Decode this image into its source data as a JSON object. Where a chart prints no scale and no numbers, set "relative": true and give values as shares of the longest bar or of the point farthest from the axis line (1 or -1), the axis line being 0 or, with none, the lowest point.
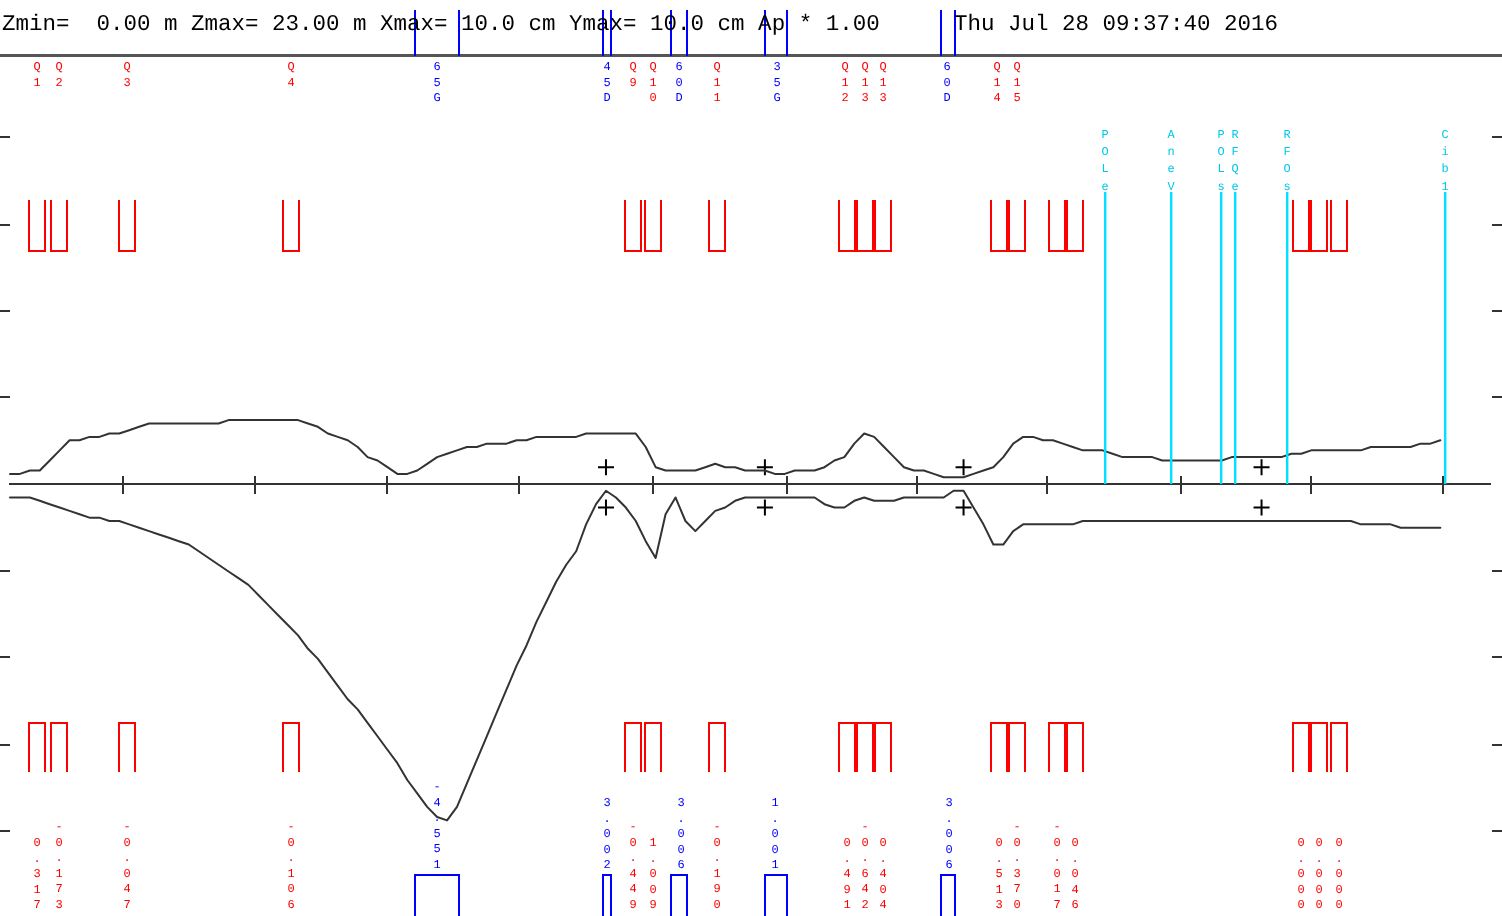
{
  "chart_data": {
    "type": "line",
    "title": "Zmin=  0.00 m Zmax= 23.00 m Xmax= 10.0 cm Ymax= 10.0 cm Ap * 1.00",
    "subtitle": "Thu Jul 28 09:37:40 2016",
    "relative": true,
    "categories": [
      null,
      null,
      null,
      null,
      null,
      null,
      null,
      null,
      null,
      null,
      null,
      null,
      null,
      null,
      null,
      null,
      null,
      null,
      null,
      null,
      null,
      null,
      null,
      null,
      null,
      null,
      null,
      null,
      null,
      null,
      null,
      null,
      null,
      null,
      null,
      null,
      null,
      null,
      null,
      null,
      null,
      null,
      null,
      null,
      null,
      null,
      null,
      null,
      null,
      null,
      null,
      null,
      null,
      null,
      null,
      null,
      null,
      null,
      null,
      null,
      null,
      null,
      null,
      null,
      null,
      null,
      null,
      null,
      null,
      null,
      null,
      null,
      null,
      null,
      null,
      null,
      null,
      null,
      null,
      null,
      null,
      null,
      null,
      null,
      null,
      null,
      null,
      null,
      null,
      null,
      null,
      null,
      null,
      null,
      null,
      null,
      null,
      null,
      null,
      null,
      null,
      null,
      null,
      null,
      null,
      null,
      null,
      null,
      null,
      null,
      null,
      null,
      null,
      null,
      null,
      null,
      null,
      null,
      null,
      null,
      null,
      null,
      null,
      null,
      null,
      null,
      null,
      null,
      null,
      null,
      null,
      null,
      null,
      null,
      null,
      null,
      null,
      null,
      null,
      null,
      null,
      null,
      null,
      null,
      null,
      null,
      null,
      null,
      null,
      null
    ],
    "series": [
      {
        "color": "#333333",
        "values": [
          0.03,
          0.03,
          0.04,
          0.04,
          0.07,
          0.1,
          0.13,
          0.13,
          0.14,
          0.14,
          0.15,
          0.15,
          0.16,
          0.17,
          0.18,
          0.18,
          0.18,
          0.18,
          0.18,
          0.18,
          0.18,
          0.18,
          0.19,
          0.19,
          0.19,
          0.19,
          0.19,
          0.19,
          0.19,
          0.19,
          0.18,
          0.17,
          0.15,
          0.14,
          0.13,
          0.11,
          0.08,
          0.07,
          0.05,
          0.03,
          0.03,
          0.04,
          0.06,
          0.08,
          0.09,
          0.1,
          0.11,
          0.11,
          0.12,
          0.12,
          0.12,
          0.13,
          0.13,
          0.14,
          0.14,
          0.14,
          0.14,
          0.14,
          0.15,
          0.15,
          0.15,
          0.15,
          0.15,
          0.15,
          0.11,
          0.05,
          0.04,
          0.04,
          0.04,
          0.04,
          0.05,
          0.06,
          0.05,
          0.05,
          0.04,
          0.04,
          0.04,
          0.03,
          0.03,
          0.04,
          0.04,
          0.04,
          0.05,
          0.07,
          0.08,
          0.12,
          0.15,
          0.14,
          0.11,
          0.08,
          0.05,
          0.04,
          0.04,
          0.03,
          0.02,
          0.02,
          0.02,
          0.03,
          0.04,
          0.05,
          0.08,
          0.12,
          0.14,
          0.14,
          0.13,
          0.13,
          0.12,
          0.11,
          0.1,
          0.1,
          0.1,
          0.09,
          0.08,
          0.08,
          0.08,
          0.08,
          0.07,
          0.07,
          0.07,
          0.07,
          0.07,
          0.07,
          0.07,
          0.08,
          0.08,
          0.08,
          0.08,
          0.08,
          0.08,
          0.09,
          0.09,
          0.1,
          0.1,
          0.1,
          0.1,
          0.1,
          0.1,
          0.11,
          0.11,
          0.11,
          0.11,
          0.11,
          0.12,
          0.12,
          0.13,
          null,
          null,
          null,
          null,
          null
        ]
      },
      {
        "color": "#333333",
        "values": [
          -0.04,
          -0.04,
          -0.04,
          -0.05,
          -0.06,
          -0.07,
          -0.08,
          -0.09,
          -0.1,
          -0.1,
          -0.11,
          -0.11,
          -0.12,
          -0.13,
          -0.14,
          -0.15,
          -0.16,
          -0.17,
          -0.18,
          -0.2,
          -0.22,
          -0.24,
          -0.26,
          -0.28,
          -0.3,
          -0.33,
          -0.36,
          -0.39,
          -0.42,
          -0.45,
          -0.49,
          -0.52,
          -0.56,
          -0.6,
          -0.64,
          -0.67,
          -0.71,
          -0.75,
          -0.79,
          -0.83,
          -0.88,
          -0.92,
          -0.96,
          -0.99,
          -1.0,
          -0.96,
          -0.89,
          -0.82,
          -0.75,
          -0.68,
          -0.61,
          -0.54,
          -0.48,
          -0.41,
          -0.35,
          -0.29,
          -0.24,
          -0.2,
          -0.12,
          -0.06,
          -0.02,
          -0.04,
          -0.07,
          -0.11,
          -0.17,
          -0.22,
          -0.09,
          -0.04,
          -0.11,
          -0.14,
          -0.11,
          -0.08,
          -0.07,
          -0.05,
          -0.04,
          -0.04,
          -0.04,
          -0.04,
          -0.04,
          -0.04,
          -0.04,
          -0.04,
          -0.06,
          -0.07,
          -0.07,
          -0.05,
          -0.04,
          -0.05,
          -0.05,
          -0.05,
          -0.04,
          -0.04,
          -0.04,
          -0.04,
          -0.04,
          -0.02,
          -0.02,
          -0.07,
          -0.12,
          -0.18,
          -0.18,
          -0.14,
          -0.12,
          -0.12,
          -0.12,
          -0.12,
          -0.12,
          -0.12,
          -0.11,
          -0.11,
          -0.11,
          -0.11,
          -0.11,
          -0.11,
          -0.11,
          -0.11,
          -0.11,
          -0.11,
          -0.11,
          -0.11,
          -0.11,
          -0.11,
          -0.11,
          -0.11,
          -0.11,
          -0.11,
          -0.11,
          -0.11,
          -0.11,
          -0.11,
          -0.11,
          -0.11,
          -0.11,
          -0.11,
          -0.11,
          -0.11,
          -0.12,
          -0.12,
          -0.12,
          -0.12,
          -0.13,
          -0.13,
          -0.13,
          -0.13,
          -0.13,
          null,
          null,
          null,
          null,
          null
        ]
      },
      {
        "color": "#000000",
        "marker": "cross",
        "values": [
          null,
          null,
          null,
          null,
          null,
          null,
          null,
          null,
          null,
          null,
          null,
          null,
          null,
          null,
          null,
          null,
          null,
          null,
          null,
          null,
          null,
          null,
          null,
          null,
          null,
          null,
          null,
          null,
          null,
          null,
          null,
          null,
          null,
          null,
          null,
          null,
          null,
          null,
          null,
          null,
          null,
          null,
          null,
          null,
          null,
          null,
          null,
          null,
          null,
          null,
          null,
          null,
          null,
          null,
          null,
          null,
          null,
          null,
          null,
          null,
          0.05,
          null,
          null,
          null,
          null,
          null,
          null,
          null,
          null,
          null,
          null,
          null,
          null,
          null,
          null,
          null,
          0.05,
          null,
          null,
          null,
          null,
          null,
          null,
          null,
          null,
          null,
          null,
          null,
          null,
          null,
          null,
          null,
          null,
          null,
          null,
          null,
          0.05,
          null,
          null,
          null,
          null,
          null,
          null,
          null,
          null,
          null,
          null,
          null,
          null,
          null,
          null,
          null,
          null,
          null,
          null,
          null,
          null,
          null,
          null,
          null,
          null,
          null,
          null,
          null,
          null,
          null,
          0.05,
          null,
          null,
          null,
          null,
          null,
          null,
          null,
          null,
          null,
          null,
          null,
          null,
          null,
          null,
          null,
          null,
          null,
          null,
          null,
          null,
          null,
          null,
          null
        ]
      },
      {
        "color": "#000000",
        "marker": "cross",
        "values": [
          null,
          null,
          null,
          null,
          null,
          null,
          null,
          null,
          null,
          null,
          null,
          null,
          null,
          null,
          null,
          null,
          null,
          null,
          null,
          null,
          null,
          null,
          null,
          null,
          null,
          null,
          null,
          null,
          null,
          null,
          null,
          null,
          null,
          null,
          null,
          null,
          null,
          null,
          null,
          null,
          null,
          null,
          null,
          null,
          null,
          null,
          null,
          null,
          null,
          null,
          null,
          null,
          null,
          null,
          null,
          null,
          null,
          null,
          null,
          null,
          -0.07,
          null,
          null,
          null,
          null,
          null,
          null,
          null,
          null,
          null,
          null,
          null,
          null,
          null,
          null,
          null,
          -0.07,
          null,
          null,
          null,
          null,
          null,
          null,
          null,
          null,
          null,
          null,
          null,
          null,
          null,
          null,
          null,
          null,
          null,
          null,
          null,
          -0.07,
          null,
          null,
          null,
          null,
          null,
          null,
          null,
          null,
          null,
          null,
          null,
          null,
          null,
          null,
          null,
          null,
          null,
          null,
          null,
          null,
          null,
          null,
          null,
          null,
          null,
          null,
          null,
          null,
          null,
          -0.07,
          null,
          null,
          null,
          null,
          null,
          null,
          null,
          null,
          null,
          null,
          null,
          null,
          null,
          null,
          null,
          null,
          null,
          null,
          null,
          null,
          null,
          null,
          null
        ]
      }
    ],
    "annotations": [
      "Q1",
      "Q2",
      "Q3",
      "Q4",
      "65G",
      "45D",
      "Q9",
      "Q10",
      "60D",
      "Q11",
      "35G",
      "Q12",
      "Q13",
      "Q13",
      "60D",
      "Q14",
      "Q15",
      "POLe",
      "AneV",
      "POLs",
      "RFQe",
      "RFOs",
      "Cib1",
      "0.317",
      "-0.173",
      "-0.047",
      "-0.106",
      "-4.551",
      "3.002",
      "-0.449",
      "1.009",
      "3.006",
      "-0.190",
      "1.001",
      "0.491",
      "-0.642",
      "0.404",
      "3.006",
      "0.513",
      "-0.370",
      "-0.017",
      "0.046",
      "0.000",
      "0.000",
      "0.000"
    ]
  }
}
